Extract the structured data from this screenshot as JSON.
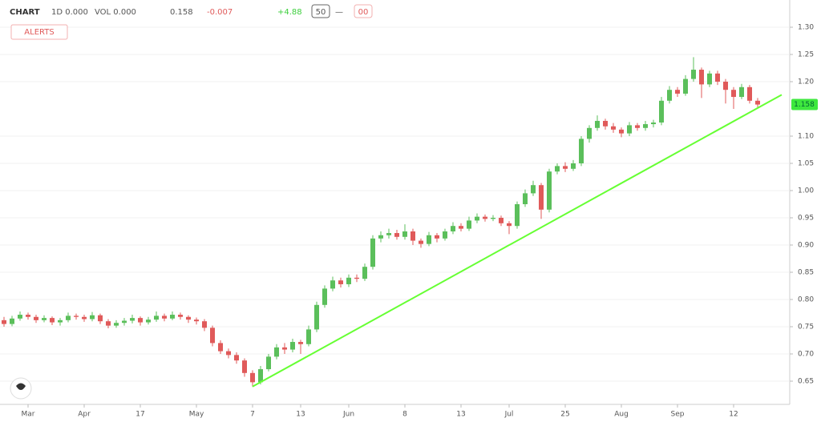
{
  "header": {
    "symbol": "CHART",
    "interval": "1D 0.000",
    "volume": "VOL 0.000",
    "change_label": "0.158",
    "change": "-0.007",
    "percent": "+4.88",
    "button_a": "50",
    "button_b": "—",
    "button_c": "00",
    "alert": "ALERTS"
  },
  "chart_data": {
    "type": "candlestick",
    "categories": [
      null,
      null,
      null,
      "Mar",
      null,
      null,
      null,
      null,
      null,
      null,
      "Apr",
      null,
      null,
      null,
      null,
      null,
      null,
      "17",
      null,
      null,
      null,
      null,
      null,
      null,
      "May",
      null,
      null,
      null,
      null,
      null,
      null,
      "7",
      null,
      null,
      null,
      null,
      null,
      "13",
      null,
      null,
      null,
      null,
      null,
      "Jun",
      null,
      null,
      null,
      null,
      null,
      null,
      "8",
      null,
      null,
      null,
      null,
      null,
      null,
      "13",
      null,
      null,
      null,
      null,
      null,
      "Jul",
      null,
      null,
      null,
      null,
      null,
      null,
      "25",
      null,
      null,
      null,
      null,
      null,
      null,
      "Aug",
      null,
      null,
      null,
      null,
      null,
      null,
      "Sep",
      null,
      null,
      null,
      null,
      null,
      null,
      "12",
      null,
      null,
      null
    ],
    "open": [
      0.762,
      0.755,
      0.765,
      0.772,
      0.768,
      0.762,
      0.766,
      0.758,
      0.762,
      0.77,
      0.768,
      0.764,
      0.771,
      0.76,
      0.752,
      0.757,
      0.761,
      0.766,
      0.758,
      0.763,
      0.77,
      0.765,
      0.772,
      0.768,
      0.763,
      0.76,
      0.748,
      0.72,
      0.705,
      0.698,
      0.688,
      0.665,
      0.648,
      0.672,
      0.695,
      0.712,
      0.708,
      0.722,
      0.718,
      0.745,
      0.79,
      0.82,
      0.835,
      0.828,
      0.84,
      0.838,
      0.86,
      0.912,
      0.918,
      0.922,
      0.915,
      0.925,
      0.908,
      0.902,
      0.918,
      0.912,
      0.925,
      0.935,
      0.93,
      0.945,
      0.952,
      0.948,
      0.95,
      0.94,
      0.935,
      0.975,
      0.995,
      1.01,
      0.965,
      1.035,
      1.045,
      1.04,
      1.05,
      1.095,
      1.115,
      1.128,
      1.118,
      1.112,
      1.105,
      1.12,
      1.115,
      1.122,
      1.125,
      1.165,
      1.185,
      1.178,
      1.205,
      1.222,
      1.195,
      1.215,
      1.2,
      1.185,
      1.172,
      1.19,
      1.165
    ],
    "high": [
      0.768,
      0.77,
      0.778,
      0.776,
      0.772,
      0.771,
      0.769,
      0.766,
      0.776,
      0.774,
      0.772,
      0.777,
      0.774,
      0.764,
      0.762,
      0.766,
      0.772,
      0.769,
      0.768,
      0.778,
      0.774,
      0.778,
      0.776,
      0.771,
      0.767,
      0.764,
      0.752,
      0.725,
      0.71,
      0.703,
      0.692,
      0.67,
      0.678,
      0.7,
      0.718,
      0.72,
      0.728,
      0.726,
      0.752,
      0.796,
      0.826,
      0.842,
      0.84,
      0.846,
      0.846,
      0.866,
      0.918,
      0.925,
      0.93,
      0.928,
      0.938,
      0.93,
      0.912,
      0.924,
      0.922,
      0.93,
      0.942,
      0.94,
      0.952,
      0.958,
      0.956,
      0.955,
      0.954,
      0.944,
      0.98,
      1.002,
      1.018,
      1.014,
      1.04,
      1.05,
      1.052,
      1.056,
      1.1,
      1.12,
      1.138,
      1.132,
      1.124,
      1.116,
      1.126,
      1.124,
      1.128,
      1.13,
      1.172,
      1.192,
      1.19,
      1.212,
      1.245,
      1.226,
      1.22,
      1.22,
      1.205,
      1.19,
      1.196,
      1.194,
      1.17
    ],
    "low": [
      0.75,
      0.751,
      0.761,
      0.763,
      0.757,
      0.758,
      0.753,
      0.752,
      0.758,
      0.763,
      0.759,
      0.76,
      0.755,
      0.747,
      0.748,
      0.752,
      0.756,
      0.752,
      0.754,
      0.759,
      0.76,
      0.762,
      0.763,
      0.757,
      0.754,
      0.742,
      0.714,
      0.7,
      0.692,
      0.682,
      0.658,
      0.64,
      0.644,
      0.668,
      0.69,
      0.7,
      0.703,
      0.7,
      0.714,
      0.74,
      0.785,
      0.815,
      0.822,
      0.823,
      0.832,
      0.834,
      0.855,
      0.905,
      0.912,
      0.91,
      0.91,
      0.9,
      0.895,
      0.898,
      0.905,
      0.908,
      0.92,
      0.925,
      0.926,
      0.94,
      0.943,
      0.944,
      0.935,
      0.92,
      0.93,
      0.97,
      0.99,
      0.948,
      0.96,
      1.03,
      1.034,
      1.036,
      1.045,
      1.088,
      1.11,
      1.112,
      1.106,
      1.098,
      1.1,
      1.11,
      1.11,
      1.116,
      1.12,
      1.16,
      1.172,
      1.174,
      1.2,
      1.17,
      1.19,
      1.194,
      1.16,
      1.15,
      1.168,
      1.16,
      1.152
    ],
    "close": [
      0.755,
      0.765,
      0.772,
      0.768,
      0.762,
      0.766,
      0.758,
      0.762,
      0.77,
      0.768,
      0.764,
      0.771,
      0.76,
      0.752,
      0.757,
      0.761,
      0.766,
      0.758,
      0.763,
      0.77,
      0.765,
      0.772,
      0.768,
      0.763,
      0.76,
      0.748,
      0.72,
      0.705,
      0.698,
      0.688,
      0.665,
      0.648,
      0.672,
      0.695,
      0.712,
      0.708,
      0.722,
      0.718,
      0.745,
      0.79,
      0.82,
      0.835,
      0.828,
      0.84,
      0.838,
      0.86,
      0.912,
      0.918,
      0.922,
      0.915,
      0.925,
      0.908,
      0.902,
      0.918,
      0.912,
      0.925,
      0.935,
      0.93,
      0.945,
      0.952,
      0.948,
      0.95,
      0.94,
      0.935,
      0.975,
      0.995,
      1.01,
      0.965,
      1.035,
      1.045,
      1.04,
      1.05,
      1.095,
      1.115,
      1.128,
      1.118,
      1.112,
      1.105,
      1.12,
      1.115,
      1.122,
      1.125,
      1.165,
      1.185,
      1.178,
      1.205,
      1.222,
      1.195,
      1.215,
      1.2,
      1.185,
      1.172,
      1.19,
      1.165,
      1.158
    ],
    "up_color": "#5bbf5b",
    "down_color": "#e05a5a",
    "trendline": {
      "x": [
        31,
        97
      ],
      "y": [
        0.64,
        1.176
      ],
      "color": "#66ff33"
    },
    "ylim": [
      0.6,
      1.35
    ],
    "yticks": [
      {
        "value": 0.65,
        "label": "0.65"
      },
      {
        "value": 0.7,
        "label": "0.70"
      },
      {
        "value": 0.75,
        "label": "0.75"
      },
      {
        "value": 0.8,
        "label": "0.80"
      },
      {
        "value": 0.85,
        "label": "0.85"
      },
      {
        "value": 0.9,
        "label": "0.90"
      },
      {
        "value": 0.95,
        "label": "0.95"
      },
      {
        "value": 1.0,
        "label": "1.00"
      },
      {
        "value": 1.05,
        "label": "1.05"
      },
      {
        "value": 1.1,
        "label": "1.10"
      },
      {
        "value": 1.2,
        "label": "1.20"
      },
      {
        "value": 1.25,
        "label": "1.25"
      },
      {
        "value": 1.3,
        "label": "1.30"
      }
    ],
    "grid": true
  }
}
